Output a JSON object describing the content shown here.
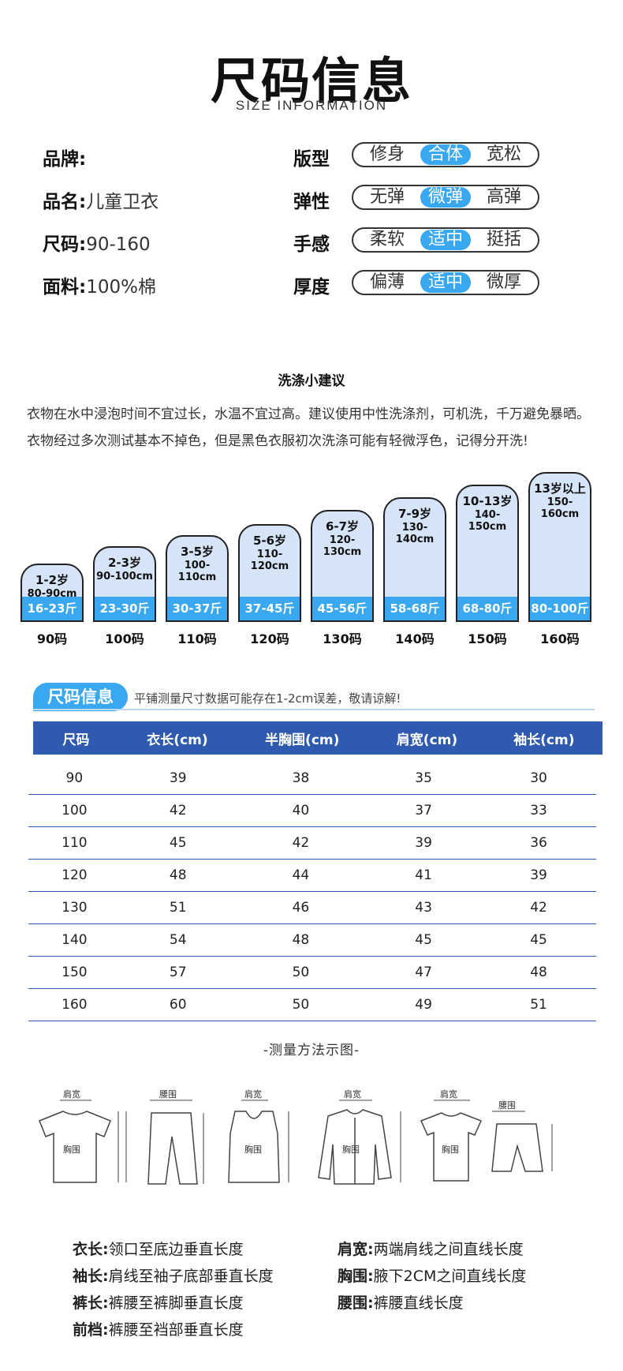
{
  "header": {
    "title": "尺码信息",
    "subtitle": "SIZE INFORMATION"
  },
  "info": [
    {
      "key": "品牌:",
      "value": ""
    },
    {
      "key": "品名:",
      "value": "儿童卫衣"
    },
    {
      "key": "尺码:",
      "value": "90-160"
    },
    {
      "key": "面料:",
      "value": "100%棉"
    }
  ],
  "attrs": [
    {
      "label": "版型",
      "options": [
        "修身",
        "合体",
        "宽松"
      ],
      "selected": 1
    },
    {
      "label": "弹性",
      "options": [
        "无弹",
        "微弹",
        "高弹"
      ],
      "selected": 1
    },
    {
      "label": "手感",
      "options": [
        "柔软",
        "适中",
        "挺括"
      ],
      "selected": 1
    },
    {
      "label": "厚度",
      "options": [
        "偏薄",
        "适中",
        "微厚"
      ],
      "selected": 1
    }
  ],
  "wash": {
    "title": "洗涤小建议",
    "text": "衣物在水中浸泡时间不宜过长，水温不宜过高。建议使用中性洗涤剂，可机洗，千万避免暴晒。衣物经过多次测试基本不掉色，但是黑色衣服初次洗涤可能有轻微浮色，记得分开洗!"
  },
  "sizes": [
    {
      "age": "1-2岁",
      "height": "80-90cm",
      "weight": "16-23斤",
      "size": "90码"
    },
    {
      "age": "2-3岁",
      "height": "90-100cm",
      "weight": "23-30斤",
      "size": "100码"
    },
    {
      "age": "3-5岁",
      "height": "100-110cm",
      "weight": "30-37斤",
      "size": "110码"
    },
    {
      "age": "5-6岁",
      "height": "110-120cm",
      "weight": "37-45斤",
      "size": "120码"
    },
    {
      "age": "6-7岁",
      "height": "120-130cm",
      "weight": "45-56斤",
      "size": "130码"
    },
    {
      "age": "7-9岁",
      "height": "130-140cm",
      "weight": "58-68斤",
      "size": "140码"
    },
    {
      "age": "10-13岁",
      "height": "140-150cm",
      "weight": "68-80斤",
      "size": "150码"
    },
    {
      "age": "13岁以上",
      "height": "150-160cm",
      "weight": "80-100斤",
      "size": "160码"
    }
  ],
  "size_table": {
    "badge": "尺码信息",
    "note": "平铺测量尺寸数据可能存在1-2cm误差，敬请谅解!",
    "headers": [
      "尺码",
      "衣长(cm)",
      "半胸围(cm)",
      "肩宽(cm)",
      "袖长(cm)"
    ],
    "rows": [
      [
        "90",
        "39",
        "38",
        "35",
        "30"
      ],
      [
        "100",
        "42",
        "40",
        "37",
        "33"
      ],
      [
        "110",
        "45",
        "42",
        "39",
        "36"
      ],
      [
        "120",
        "48",
        "44",
        "41",
        "39"
      ],
      [
        "130",
        "51",
        "46",
        "43",
        "42"
      ],
      [
        "140",
        "54",
        "48",
        "45",
        "45"
      ],
      [
        "150",
        "57",
        "50",
        "47",
        "48"
      ],
      [
        "160",
        "60",
        "50",
        "49",
        "51"
      ]
    ]
  },
  "method": {
    "title": "-测量方法示图-",
    "labels": {
      "shoulder": "肩宽",
      "chest": "胸围",
      "length": "衣长",
      "sleeve": "袖长",
      "waist": "腰围",
      "rise": "前档",
      "pants": "裤长"
    }
  },
  "definitions": [
    {
      "term": "衣长:",
      "desc": "领口至底边垂直长度"
    },
    {
      "term": "肩宽:",
      "desc": "两端肩线之间直线长度"
    },
    {
      "term": "袖长:",
      "desc": "肩线至袖子底部垂直长度"
    },
    {
      "term": "胸围:",
      "desc": "腋下2CM之间直线长度"
    },
    {
      "term": "裤长:",
      "desc": "裤腰至裤脚垂直长度"
    },
    {
      "term": "腰围:",
      "desc": "裤腰直线长度"
    },
    {
      "term": "前档:",
      "desc": "裤腰至裆部垂直长度"
    }
  ],
  "colors": {
    "accent": "#3aa8f0",
    "table_head": "#2f5ab0",
    "bar_fill": "#d6e4f8"
  }
}
